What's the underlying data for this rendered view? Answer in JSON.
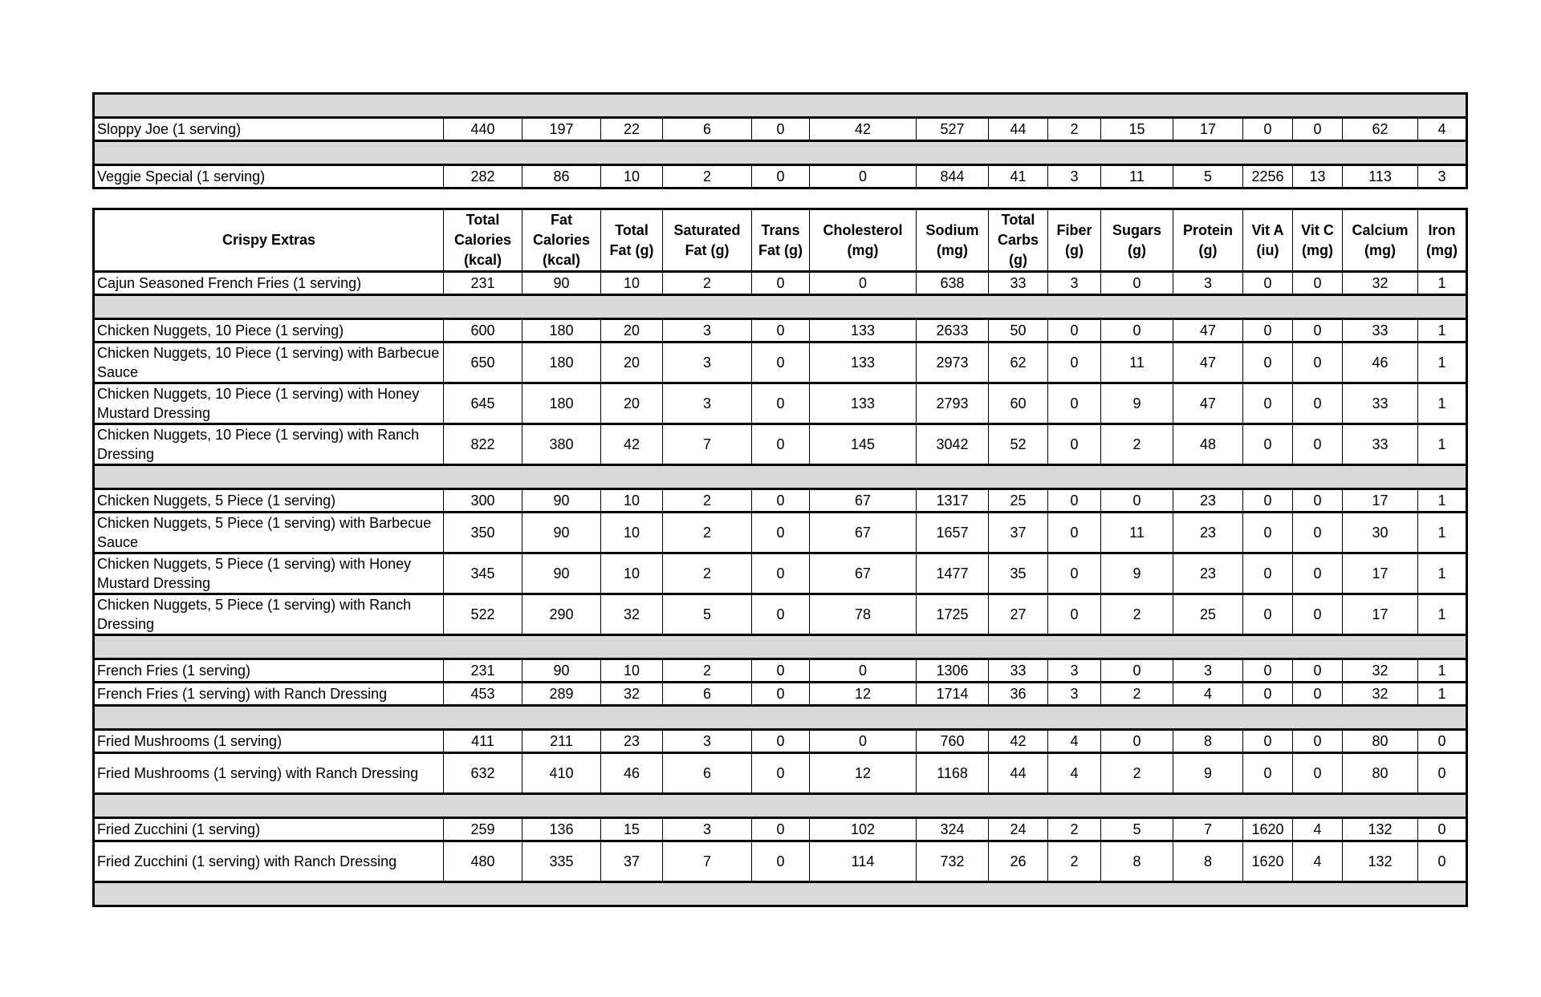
{
  "columns": [
    "Crispy Extras",
    "Total Calories (kcal)",
    "Fat Calories (kcal)",
    "Total Fat (g)",
    "Saturated Fat (g)",
    "Trans Fat (g)",
    "Cholesterol (mg)",
    "Sodium (mg)",
    "Total Carbs (g)",
    "Fiber (g)",
    "Sugars (g)",
    "Protein (g)",
    "Vit A (iu)",
    "Vit C (mg)",
    "Calcium (mg)",
    "Iron (mg)"
  ],
  "column_lines": [
    [
      "Crispy Extras"
    ],
    [
      "Total",
      "Calories",
      "(kcal)"
    ],
    [
      "Fat",
      "Calories",
      "(kcal)"
    ],
    [
      "Total",
      "Fat (g)"
    ],
    [
      "Saturated",
      "Fat (g)"
    ],
    [
      "Trans",
      "Fat (g)"
    ],
    [
      "Cholesterol",
      "(mg)"
    ],
    [
      "Sodium",
      "(mg)"
    ],
    [
      "Total",
      "Carbs",
      "(g)"
    ],
    [
      "Fiber",
      "(g)"
    ],
    [
      "Sugars",
      "(g)"
    ],
    [
      "Protein",
      "(g)"
    ],
    [
      "Vit A",
      "(iu)"
    ],
    [
      "Vit C",
      "(mg)"
    ],
    [
      "Calcium",
      "(mg)"
    ],
    [
      "Iron",
      "(mg)"
    ]
  ],
  "colors": {
    "separator_fill": "#d9d9d9",
    "border": "#000000"
  },
  "tables": [
    {
      "has_header": false,
      "rows": [
        {
          "gap": true
        },
        {
          "name": "Sloppy Joe (1 serving)",
          "values": [
            440,
            197,
            22,
            6,
            0,
            42,
            527,
            44,
            2,
            15,
            17,
            0,
            0,
            62,
            4
          ]
        },
        {
          "gap": true
        },
        {
          "name": "Veggie Special (1 serving)",
          "values": [
            282,
            86,
            10,
            2,
            0,
            0,
            844,
            41,
            3,
            11,
            5,
            2256,
            13,
            113,
            3
          ]
        }
      ]
    },
    {
      "has_header": true,
      "rows": [
        {
          "name": "Cajun Seasoned French Fries (1 serving)",
          "values": [
            231,
            90,
            10,
            2,
            0,
            0,
            638,
            33,
            3,
            0,
            3,
            0,
            0,
            32,
            1
          ]
        },
        {
          "gap": true
        },
        {
          "name": "Chicken Nuggets, 10 Piece (1 serving)",
          "values": [
            600,
            180,
            20,
            3,
            0,
            133,
            2633,
            50,
            0,
            0,
            47,
            0,
            0,
            33,
            1
          ]
        },
        {
          "name": "Chicken Nuggets, 10 Piece (1 serving) with Barbecue Sauce",
          "tall": true,
          "values": [
            650,
            180,
            20,
            3,
            0,
            133,
            2973,
            62,
            0,
            11,
            47,
            0,
            0,
            46,
            1
          ]
        },
        {
          "name": "Chicken Nuggets, 10 Piece (1 serving) with Honey Mustard Dressing",
          "tall": true,
          "values": [
            645,
            180,
            20,
            3,
            0,
            133,
            2793,
            60,
            0,
            9,
            47,
            0,
            0,
            33,
            1
          ]
        },
        {
          "name": "Chicken Nuggets, 10 Piece (1 serving) with Ranch Dressing",
          "tall": true,
          "values": [
            822,
            380,
            42,
            7,
            0,
            145,
            3042,
            52,
            0,
            2,
            48,
            0,
            0,
            33,
            1
          ]
        },
        {
          "gap": true
        },
        {
          "name": "Chicken Nuggets, 5 Piece (1 serving)",
          "values": [
            300,
            90,
            10,
            2,
            0,
            67,
            1317,
            25,
            0,
            0,
            23,
            0,
            0,
            17,
            1
          ]
        },
        {
          "name": "Chicken Nuggets, 5 Piece (1 serving) with Barbecue Sauce",
          "tall": true,
          "values": [
            350,
            90,
            10,
            2,
            0,
            67,
            1657,
            37,
            0,
            11,
            23,
            0,
            0,
            30,
            1
          ]
        },
        {
          "name": "Chicken Nuggets, 5 Piece (1 serving) with Honey Mustard Dressing",
          "tall": true,
          "values": [
            345,
            90,
            10,
            2,
            0,
            67,
            1477,
            35,
            0,
            9,
            23,
            0,
            0,
            17,
            1
          ]
        },
        {
          "name": "Chicken Nuggets, 5 Piece (1 serving) with Ranch Dressing",
          "tall": true,
          "values": [
            522,
            290,
            32,
            5,
            0,
            78,
            1725,
            27,
            0,
            2,
            25,
            0,
            0,
            17,
            1
          ]
        },
        {
          "gap": true
        },
        {
          "name": "French Fries (1 serving)",
          "values": [
            231,
            90,
            10,
            2,
            0,
            0,
            1306,
            33,
            3,
            0,
            3,
            0,
            0,
            32,
            1
          ]
        },
        {
          "name": "French Fries (1 serving) with Ranch Dressing",
          "values": [
            453,
            289,
            32,
            6,
            0,
            12,
            1714,
            36,
            3,
            2,
            4,
            0,
            0,
            32,
            1
          ]
        },
        {
          "gap": true
        },
        {
          "name": "Fried Mushrooms (1 serving)",
          "values": [
            411,
            211,
            23,
            3,
            0,
            0,
            760,
            42,
            4,
            0,
            8,
            0,
            0,
            80,
            0
          ]
        },
        {
          "name": "Fried Mushrooms (1 serving) with Ranch Dressing",
          "tall": true,
          "values": [
            632,
            410,
            46,
            6,
            0,
            12,
            1168,
            44,
            4,
            2,
            9,
            0,
            0,
            80,
            0
          ]
        },
        {
          "gap": true
        },
        {
          "name": "Fried Zucchini (1 serving)",
          "values": [
            259,
            136,
            15,
            3,
            0,
            102,
            324,
            24,
            2,
            5,
            7,
            1620,
            4,
            132,
            0
          ]
        },
        {
          "name": "Fried Zucchini (1 serving) with Ranch Dressing",
          "tall": true,
          "values": [
            480,
            335,
            37,
            7,
            0,
            114,
            732,
            26,
            2,
            8,
            8,
            1620,
            4,
            132,
            0
          ]
        },
        {
          "gap": true
        }
      ]
    }
  ]
}
